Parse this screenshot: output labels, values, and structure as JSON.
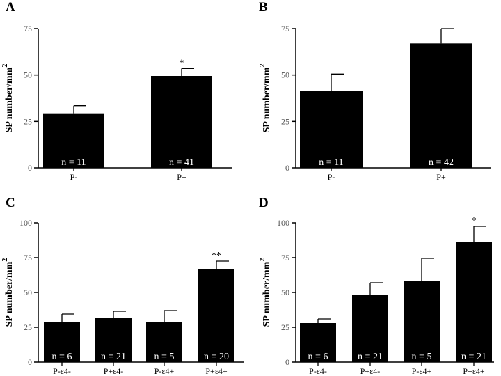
{
  "chart_data": [
    {
      "type": "bar",
      "panel": "A",
      "ylabel": "SP number/mm",
      "ylabel_sup": "2",
      "ylim": [
        0,
        75
      ],
      "yticks": [
        "0",
        "25",
        "50",
        "75"
      ],
      "categories": [
        "P-",
        "P+"
      ],
      "values": [
        29,
        49.5
      ],
      "errors": [
        4.5,
        4
      ],
      "n_labels": [
        "n = 11",
        "n = 41"
      ],
      "significance": [
        "",
        "*"
      ]
    },
    {
      "type": "bar",
      "panel": "B",
      "ylabel": "SP number/mm",
      "ylabel_sup": "2",
      "ylim": [
        0,
        75
      ],
      "yticks": [
        "0",
        "25",
        "50",
        "75"
      ],
      "categories": [
        "P-",
        "P+"
      ],
      "values": [
        41.5,
        67
      ],
      "errors": [
        9,
        8
      ],
      "n_labels": [
        "n = 11",
        "n = 42"
      ],
      "significance": [
        "",
        ""
      ]
    },
    {
      "type": "bar",
      "panel": "C",
      "ylabel": "SP number/mm",
      "ylabel_sup": "2",
      "ylim": [
        0,
        100
      ],
      "yticks": [
        "0",
        "25",
        "50",
        "75",
        "100"
      ],
      "categories": [
        "P-ε4-",
        "P+ε4-",
        "P-ε4+",
        "P+ε4+"
      ],
      "values": [
        29,
        32,
        29,
        67
      ],
      "errors": [
        5.5,
        4.5,
        8,
        5.5
      ],
      "n_labels": [
        "n = 6",
        "n = 21",
        "n = 5",
        "n = 20"
      ],
      "significance": [
        "",
        "",
        "",
        "**"
      ]
    },
    {
      "type": "bar",
      "panel": "D",
      "ylabel": "SP number/mm",
      "ylabel_sup": "2",
      "ylim": [
        0,
        100
      ],
      "yticks": [
        "0",
        "25",
        "50",
        "75",
        "100"
      ],
      "categories": [
        "P-ε4-",
        "P+ε4-",
        "P-ε4+",
        "P+ε4+"
      ],
      "values": [
        28,
        48,
        58,
        86
      ],
      "errors": [
        3,
        9,
        16.5,
        11.5
      ],
      "n_labels": [
        "n = 6",
        "n = 21",
        "n = 5",
        "n = 21"
      ],
      "significance": [
        "",
        "",
        "",
        "*"
      ]
    }
  ]
}
